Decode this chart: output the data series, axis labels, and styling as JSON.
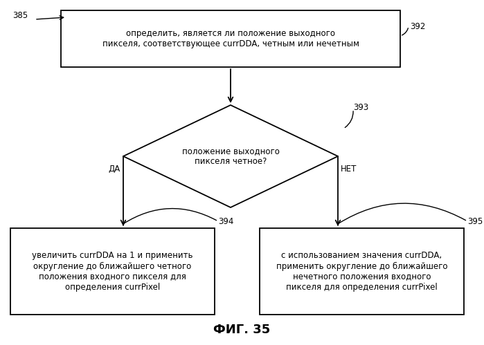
{
  "bg_color": "#ffffff",
  "fig_caption": "ФИГ. 35",
  "label_385": "385",
  "label_392": "392",
  "label_393": "393",
  "label_394": "394",
  "label_395": "395",
  "box1_text": "определить, является ли положение выходного\nпикселя, соответствующее currDDA, четным или нечетным",
  "diamond_text": "положение выходного\nпикселя четное?",
  "da_label": "ДА",
  "net_label": "НЕТ",
  "box2_text": "увеличить currDDA на 1 и применить\nокругление до ближайшего четного\nположения входного пикселя для\nопределения currPixel",
  "box3_text": "с использованием значения currDDA,\nприменить округление до ближайшего\nнечетного положения входного\nпикселя для определения currPixel",
  "font_size_main": 8.5,
  "font_size_label": 8.5,
  "font_size_caption": 13,
  "font_size_ref": 8.5,
  "fig_w": 6.99,
  "fig_h": 4.99,
  "dpi": 100
}
